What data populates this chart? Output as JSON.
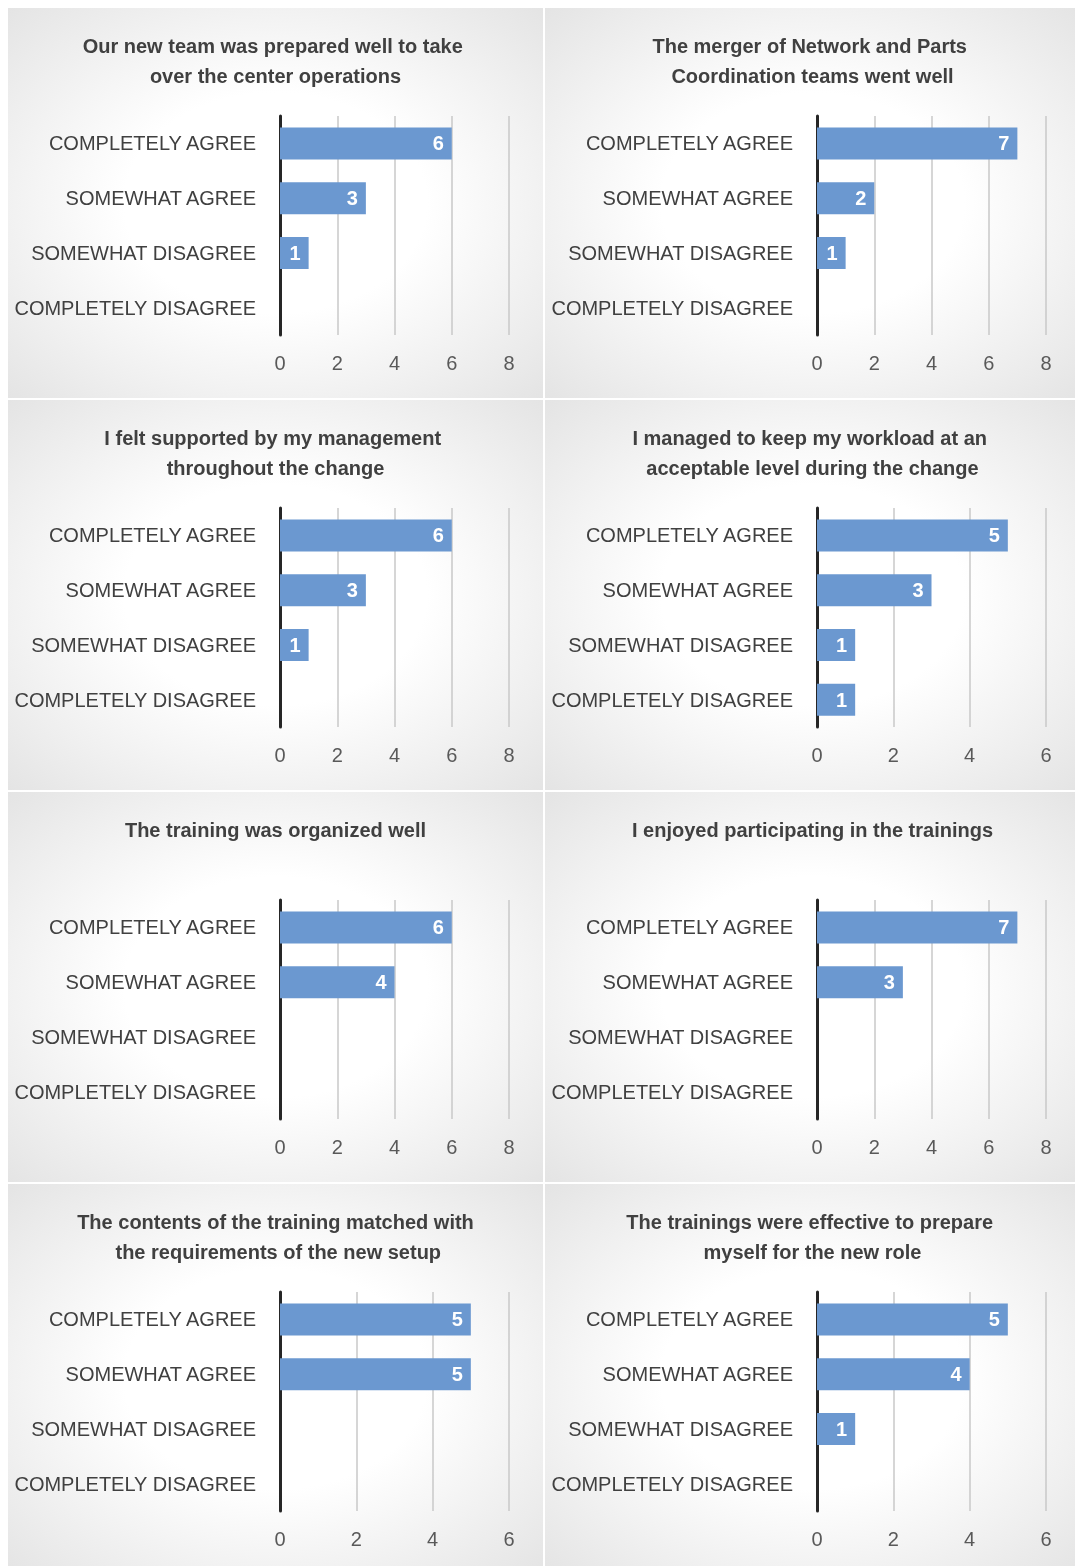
{
  "chart_data": [
    {
      "type": "bar",
      "orientation": "horizontal",
      "title": "Our new team was prepared well to take over the center operations",
      "categories": [
        "COMPLETELY AGREE",
        "SOMEWHAT AGREE",
        "SOMEWHAT DISAGREE",
        "COMPLETELY DISAGREE"
      ],
      "values": [
        6,
        3,
        1,
        0
      ],
      "value_labels": [
        "6",
        "3",
        "1",
        null
      ],
      "color": "#6b98d0",
      "xlim": [
        0,
        8
      ],
      "xticks": [
        0,
        2,
        4,
        6,
        8
      ],
      "grid": "x"
    },
    {
      "type": "bar",
      "orientation": "horizontal",
      "title": "The merger of Network and Parts Coordination teams went well",
      "categories": [
        "COMPLETELY AGREE",
        "SOMEWHAT AGREE",
        "SOMEWHAT DISAGREE",
        "COMPLETELY DISAGREE"
      ],
      "values": [
        7,
        2,
        1,
        0
      ],
      "value_labels": [
        "7",
        "2",
        "1",
        null
      ],
      "color": "#6b98d0",
      "xlim": [
        0,
        8
      ],
      "xticks": [
        0,
        2,
        4,
        6,
        8
      ],
      "grid": "x"
    },
    {
      "type": "bar",
      "orientation": "horizontal",
      "title": "I felt supported by my management throughout the change",
      "categories": [
        "COMPLETELY AGREE",
        "SOMEWHAT AGREE",
        "SOMEWHAT DISAGREE",
        "COMPLETELY DISAGREE"
      ],
      "values": [
        6,
        3,
        1,
        0
      ],
      "value_labels": [
        "6",
        "3",
        "1",
        null
      ],
      "color": "#6b98d0",
      "xlim": [
        0,
        8
      ],
      "xticks": [
        0,
        2,
        4,
        6,
        8
      ],
      "grid": "x"
    },
    {
      "type": "bar",
      "orientation": "horizontal",
      "title": "I managed to keep my workload at an acceptable level during the change",
      "categories": [
        "COMPLETELY AGREE",
        "SOMEWHAT AGREE",
        "SOMEWHAT DISAGREE",
        "COMPLETELY DISAGREE"
      ],
      "values": [
        5,
        3,
        1,
        1
      ],
      "value_labels": [
        "5",
        "3",
        "1",
        "1"
      ],
      "color": "#6b98d0",
      "xlim": [
        0,
        6
      ],
      "xticks": [
        0,
        2,
        4,
        6
      ],
      "grid": "x"
    },
    {
      "type": "bar",
      "orientation": "horizontal",
      "title": "The training was organized well",
      "categories": [
        "COMPLETELY AGREE",
        "SOMEWHAT AGREE",
        "SOMEWHAT DISAGREE",
        "COMPLETELY DISAGREE"
      ],
      "values": [
        6,
        4,
        0,
        0
      ],
      "value_labels": [
        "6",
        "4",
        null,
        null
      ],
      "color": "#6b98d0",
      "xlim": [
        0,
        8
      ],
      "xticks": [
        0,
        2,
        4,
        6,
        8
      ],
      "grid": "x"
    },
    {
      "type": "bar",
      "orientation": "horizontal",
      "title": "I enjoyed participating in the trainings",
      "categories": [
        "COMPLETELY AGREE",
        "SOMEWHAT AGREE",
        "SOMEWHAT DISAGREE",
        "COMPLETELY DISAGREE"
      ],
      "values": [
        7,
        3,
        0,
        0
      ],
      "value_labels": [
        "7",
        "3",
        null,
        null
      ],
      "color": "#6b98d0",
      "xlim": [
        0,
        8
      ],
      "xticks": [
        0,
        2,
        4,
        6,
        8
      ],
      "grid": "x"
    },
    {
      "type": "bar",
      "orientation": "horizontal",
      "title": "The contents of the training matched with the requirements of the new setup",
      "categories": [
        "COMPLETELY AGREE",
        "SOMEWHAT AGREE",
        "SOMEWHAT DISAGREE",
        "COMPLETELY DISAGREE"
      ],
      "values": [
        5,
        5,
        0,
        0
      ],
      "value_labels": [
        "5",
        "5",
        null,
        null
      ],
      "color": "#6b98d0",
      "xlim": [
        0,
        6
      ],
      "xticks": [
        0,
        2,
        4,
        6
      ],
      "grid": "x"
    },
    {
      "type": "bar",
      "orientation": "horizontal",
      "title": "The trainings were effective to prepare myself for the new role",
      "categories": [
        "COMPLETELY AGREE",
        "SOMEWHAT AGREE",
        "SOMEWHAT DISAGREE",
        "COMPLETELY DISAGREE"
      ],
      "values": [
        5,
        4,
        1,
        0
      ],
      "value_labels": [
        "5",
        "4",
        "1",
        null
      ],
      "color": "#6b98d0",
      "xlim": [
        0,
        6
      ],
      "xticks": [
        0,
        2,
        4,
        6
      ],
      "grid": "x"
    }
  ]
}
